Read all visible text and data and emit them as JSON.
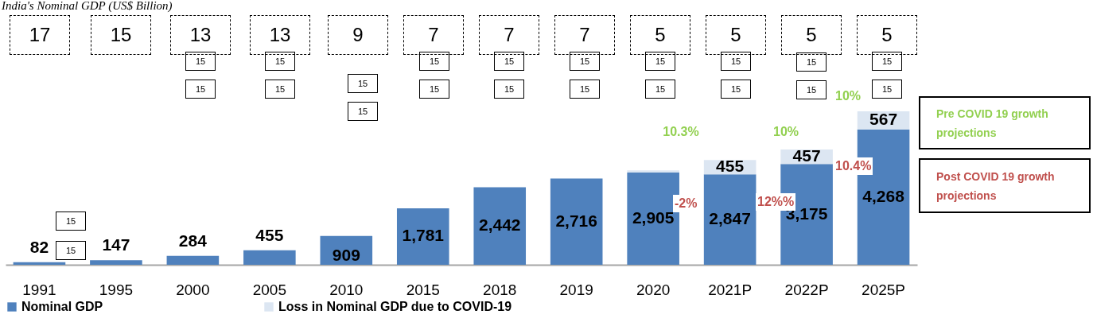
{
  "chart_data": {
    "type": "bar",
    "stacked": true,
    "title": "India's Nominal GDP (US$ Billion)",
    "categories": [
      "1991",
      "1995",
      "2000",
      "2005",
      "2010",
      "2015",
      "2018",
      "2019",
      "2020",
      "2021P",
      "2022P",
      "2025P"
    ],
    "series": [
      {
        "name": "Nominal GDP",
        "color": "#4f81bd",
        "values": [
          82,
          147,
          284,
          455,
          909,
          1781,
          2442,
          2716,
          2905,
          2847,
          3175,
          4268
        ],
        "value_labels": [
          "82",
          "147",
          "284",
          "455",
          "909",
          "1,781",
          "2,442",
          "2,716",
          "2,905",
          "2,847",
          "3,175",
          "4,268"
        ]
      },
      {
        "name": "Loss in Nominal GDP due to COVID-19",
        "color": "#dce6f2",
        "values": [
          null,
          null,
          null,
          null,
          null,
          null,
          null,
          null,
          70,
          455,
          457,
          567
        ],
        "value_labels": [
          null,
          null,
          null,
          null,
          null,
          null,
          null,
          null,
          null,
          "455",
          "457",
          "567"
        ]
      }
    ],
    "legend": "bottom",
    "annotations": [
      "17",
      "15",
      "13",
      "13",
      "9",
      "7",
      "7",
      "7",
      "5",
      "5",
      "5",
      "5",
      "15",
      "15",
      "15",
      "15",
      "15",
      "15",
      "15",
      "15",
      "15",
      "15",
      "15",
      "15",
      "15",
      "15",
      "15",
      "15",
      "15",
      "15",
      "15",
      "15",
      "15",
      "15",
      "10.3%",
      "10%",
      "10%",
      "-2%",
      "12%%",
      "10.4%",
      "Pre COVID 19 growth projections",
      "Post COVID 19 growth projections"
    ]
  }
}
